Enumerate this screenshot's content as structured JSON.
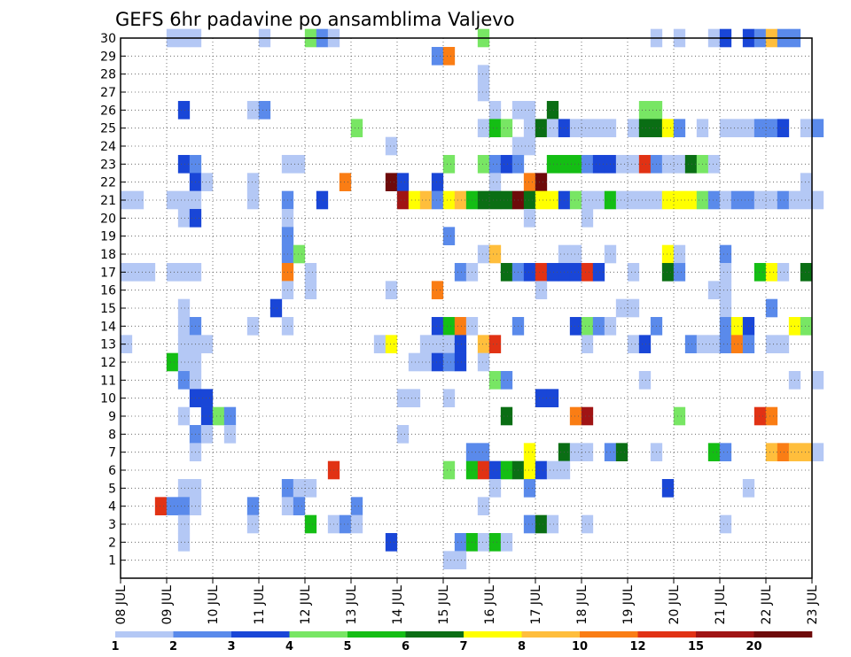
{
  "chart_data": {
    "type": "heatmap",
    "title": "GEFS 6hr padavine po ansamblima Valjevo",
    "xlabel": "",
    "ylabel": "",
    "x_ticks": [
      "08 JUL",
      "09 JUL",
      "10 JUL",
      "11 JUL",
      "12 JUL",
      "13 JUL",
      "14 JUL",
      "15 JUL",
      "16 JUL",
      "17 JUL",
      "18 JUL",
      "19 JUL",
      "20 JUL",
      "21 JUL",
      "22 JUL",
      "23 JUL"
    ],
    "y_ticks": [
      "1",
      "2",
      "3",
      "4",
      "5",
      "6",
      "7",
      "8",
      "9",
      "10",
      "11",
      "12",
      "13",
      "14",
      "15",
      "16",
      "17",
      "18",
      "19",
      "20",
      "21",
      "22",
      "23",
      "24",
      "25",
      "26",
      "27",
      "28",
      "29",
      "30"
    ],
    "xlim": [
      0,
      60
    ],
    "ylim": [
      0,
      30
    ],
    "grid": true,
    "legend": {
      "position": "bottom",
      "boundaries": [
        "1",
        "2",
        "3",
        "4",
        "5",
        "6",
        "7",
        "8",
        "10",
        "12",
        "15",
        "20"
      ],
      "colors": [
        "#b4c8f5",
        "#5a8aeb",
        "#1946d7",
        "#78e664",
        "#14be14",
        "#0a6e14",
        "#ffff00",
        "#ffbe3c",
        "#fa7d14",
        "#e13214",
        "#a01414",
        "#6e0a0a"
      ]
    },
    "cells": [
      [
        4,
        30,
        0
      ],
      [
        5,
        30,
        0
      ],
      [
        6,
        30,
        0
      ],
      [
        12,
        30,
        0
      ],
      [
        16,
        30,
        3
      ],
      [
        17,
        30,
        1
      ],
      [
        18,
        30,
        0
      ],
      [
        31,
        30,
        3
      ],
      [
        46,
        30,
        0
      ],
      [
        48,
        30,
        0
      ],
      [
        51,
        30,
        0
      ],
      [
        52,
        30,
        2
      ],
      [
        54,
        30,
        2
      ],
      [
        55,
        30,
        1
      ],
      [
        56,
        30,
        7
      ],
      [
        57,
        30,
        1
      ],
      [
        58,
        30,
        1
      ],
      [
        27,
        29,
        1
      ],
      [
        28,
        29,
        8
      ],
      [
        31,
        28,
        0
      ],
      [
        31,
        27,
        0
      ],
      [
        34,
        26,
        0
      ],
      [
        35,
        26,
        0
      ],
      [
        5,
        26,
        2
      ],
      [
        11,
        26,
        0
      ],
      [
        12,
        26,
        1
      ],
      [
        32,
        26,
        0
      ],
      [
        37,
        26,
        5
      ],
      [
        45,
        26,
        3
      ],
      [
        46,
        26,
        3
      ],
      [
        20,
        25,
        3
      ],
      [
        31,
        25,
        0
      ],
      [
        32,
        25,
        4
      ],
      [
        33,
        25,
        3
      ],
      [
        35,
        25,
        0
      ],
      [
        36,
        25,
        5
      ],
      [
        37,
        25,
        0
      ],
      [
        38,
        25,
        2
      ],
      [
        39,
        25,
        0
      ],
      [
        40,
        25,
        0
      ],
      [
        41,
        25,
        0
      ],
      [
        42,
        25,
        0
      ],
      [
        44,
        25,
        0
      ],
      [
        45,
        25,
        5
      ],
      [
        46,
        25,
        5
      ],
      [
        47,
        25,
        6
      ],
      [
        48,
        25,
        1
      ],
      [
        50,
        25,
        0
      ],
      [
        52,
        25,
        0
      ],
      [
        53,
        25,
        0
      ],
      [
        54,
        25,
        0
      ],
      [
        55,
        25,
        1
      ],
      [
        56,
        25,
        1
      ],
      [
        57,
        25,
        2
      ],
      [
        59,
        25,
        0
      ],
      [
        60,
        25,
        1
      ],
      [
        23,
        24,
        0
      ],
      [
        34,
        24,
        0
      ],
      [
        35,
        24,
        0
      ],
      [
        5,
        23,
        2
      ],
      [
        6,
        23,
        1
      ],
      [
        14,
        23,
        0
      ],
      [
        15,
        23,
        0
      ],
      [
        28,
        23,
        3
      ],
      [
        31,
        23,
        3
      ],
      [
        32,
        23,
        1
      ],
      [
        33,
        23,
        2
      ],
      [
        34,
        23,
        1
      ],
      [
        37,
        23,
        4
      ],
      [
        38,
        23,
        4
      ],
      [
        39,
        23,
        4
      ],
      [
        40,
        23,
        1
      ],
      [
        41,
        23,
        2
      ],
      [
        42,
        23,
        2
      ],
      [
        43,
        23,
        0
      ],
      [
        44,
        23,
        0
      ],
      [
        45,
        23,
        9
      ],
      [
        46,
        23,
        1
      ],
      [
        47,
        23,
        0
      ],
      [
        48,
        23,
        0
      ],
      [
        49,
        23,
        5
      ],
      [
        50,
        23,
        3
      ],
      [
        51,
        23,
        0
      ],
      [
        6,
        22,
        2
      ],
      [
        7,
        22,
        0
      ],
      [
        11,
        22,
        0
      ],
      [
        19,
        22,
        8
      ],
      [
        23,
        22,
        11
      ],
      [
        24,
        22,
        2
      ],
      [
        27,
        22,
        2
      ],
      [
        32,
        22,
        0
      ],
      [
        35,
        22,
        8
      ],
      [
        36,
        22,
        11
      ],
      [
        59,
        22,
        0
      ],
      [
        0,
        21,
        0
      ],
      [
        1,
        21,
        0
      ],
      [
        4,
        21,
        0
      ],
      [
        5,
        21,
        0
      ],
      [
        6,
        21,
        0
      ],
      [
        11,
        21,
        0
      ],
      [
        14,
        21,
        1
      ],
      [
        17,
        21,
        2
      ],
      [
        24,
        21,
        10
      ],
      [
        25,
        21,
        6
      ],
      [
        26,
        21,
        7
      ],
      [
        27,
        21,
        1
      ],
      [
        28,
        21,
        6
      ],
      [
        29,
        21,
        7
      ],
      [
        30,
        21,
        4
      ],
      [
        31,
        21,
        5
      ],
      [
        32,
        21,
        5
      ],
      [
        33,
        21,
        5
      ],
      [
        34,
        21,
        11
      ],
      [
        35,
        21,
        5
      ],
      [
        36,
        21,
        6
      ],
      [
        37,
        21,
        6
      ],
      [
        38,
        21,
        2
      ],
      [
        39,
        21,
        3
      ],
      [
        40,
        21,
        0
      ],
      [
        41,
        21,
        0
      ],
      [
        42,
        21,
        4
      ],
      [
        43,
        21,
        0
      ],
      [
        44,
        21,
        0
      ],
      [
        45,
        21,
        0
      ],
      [
        46,
        21,
        0
      ],
      [
        47,
        21,
        6
      ],
      [
        48,
        21,
        6
      ],
      [
        49,
        21,
        6
      ],
      [
        50,
        21,
        3
      ],
      [
        51,
        21,
        1
      ],
      [
        52,
        21,
        0
      ],
      [
        53,
        21,
        1
      ],
      [
        54,
        21,
        1
      ],
      [
        55,
        21,
        0
      ],
      [
        56,
        21,
        0
      ],
      [
        57,
        21,
        1
      ],
      [
        58,
        21,
        0
      ],
      [
        59,
        21,
        0
      ],
      [
        60,
        21,
        0
      ],
      [
        5,
        20,
        0
      ],
      [
        6,
        20,
        2
      ],
      [
        14,
        20,
        0
      ],
      [
        35,
        20,
        0
      ],
      [
        40,
        20,
        0
      ],
      [
        14,
        19,
        1
      ],
      [
        28,
        19,
        1
      ],
      [
        14,
        18,
        1
      ],
      [
        15,
        18,
        3
      ],
      [
        31,
        18,
        0
      ],
      [
        32,
        18,
        7
      ],
      [
        38,
        18,
        0
      ],
      [
        39,
        18,
        0
      ],
      [
        42,
        18,
        0
      ],
      [
        47,
        18,
        6
      ],
      [
        48,
        18,
        0
      ],
      [
        52,
        18,
        1
      ],
      [
        0,
        17,
        0
      ],
      [
        1,
        17,
        0
      ],
      [
        2,
        17,
        0
      ],
      [
        4,
        17,
        0
      ],
      [
        5,
        17,
        0
      ],
      [
        6,
        17,
        0
      ],
      [
        14,
        17,
        8
      ],
      [
        16,
        17,
        0
      ],
      [
        29,
        17,
        1
      ],
      [
        30,
        17,
        0
      ],
      [
        33,
        17,
        5
      ],
      [
        34,
        17,
        1
      ],
      [
        35,
        17,
        2
      ],
      [
        36,
        17,
        9
      ],
      [
        37,
        17,
        2
      ],
      [
        38,
        17,
        2
      ],
      [
        39,
        17,
        2
      ],
      [
        40,
        17,
        9
      ],
      [
        41,
        17,
        2
      ],
      [
        44,
        17,
        0
      ],
      [
        47,
        17,
        5
      ],
      [
        48,
        17,
        1
      ],
      [
        52,
        17,
        0
      ],
      [
        55,
        17,
        4
      ],
      [
        56,
        17,
        6
      ],
      [
        57,
        17,
        0
      ],
      [
        59,
        17,
        5
      ],
      [
        14,
        16,
        0
      ],
      [
        16,
        16,
        0
      ],
      [
        23,
        16,
        0
      ],
      [
        27,
        16,
        8
      ],
      [
        36,
        16,
        0
      ],
      [
        51,
        16,
        0
      ],
      [
        52,
        16,
        0
      ],
      [
        5,
        15,
        0
      ],
      [
        13,
        15,
        2
      ],
      [
        43,
        15,
        0
      ],
      [
        44,
        15,
        0
      ],
      [
        52,
        15,
        0
      ],
      [
        56,
        15,
        1
      ],
      [
        5,
        14,
        0
      ],
      [
        6,
        14,
        1
      ],
      [
        11,
        14,
        0
      ],
      [
        14,
        14,
        0
      ],
      [
        27,
        14,
        2
      ],
      [
        28,
        14,
        4
      ],
      [
        29,
        14,
        8
      ],
      [
        30,
        14,
        0
      ],
      [
        34,
        14,
        1
      ],
      [
        39,
        14,
        2
      ],
      [
        40,
        14,
        3
      ],
      [
        41,
        14,
        1
      ],
      [
        42,
        14,
        0
      ],
      [
        46,
        14,
        1
      ],
      [
        52,
        14,
        1
      ],
      [
        53,
        14,
        6
      ],
      [
        54,
        14,
        2
      ],
      [
        58,
        14,
        6
      ],
      [
        59,
        14,
        3
      ],
      [
        0,
        13,
        0
      ],
      [
        5,
        13,
        0
      ],
      [
        6,
        13,
        0
      ],
      [
        7,
        13,
        0
      ],
      [
        22,
        13,
        0
      ],
      [
        23,
        13,
        6
      ],
      [
        26,
        13,
        0
      ],
      [
        27,
        13,
        0
      ],
      [
        28,
        13,
        0
      ],
      [
        29,
        13,
        2
      ],
      [
        31,
        13,
        7
      ],
      [
        32,
        13,
        9
      ],
      [
        40,
        13,
        0
      ],
      [
        44,
        13,
        0
      ],
      [
        45,
        13,
        2
      ],
      [
        49,
        13,
        1
      ],
      [
        50,
        13,
        0
      ],
      [
        51,
        13,
        0
      ],
      [
        52,
        13,
        1
      ],
      [
        53,
        13,
        8
      ],
      [
        54,
        13,
        1
      ],
      [
        56,
        13,
        0
      ],
      [
        57,
        13,
        0
      ],
      [
        4,
        12,
        4
      ],
      [
        5,
        12,
        0
      ],
      [
        6,
        12,
        0
      ],
      [
        25,
        12,
        0
      ],
      [
        26,
        12,
        0
      ],
      [
        27,
        12,
        2
      ],
      [
        28,
        12,
        1
      ],
      [
        29,
        12,
        2
      ],
      [
        31,
        12,
        0
      ],
      [
        5,
        11,
        1
      ],
      [
        6,
        11,
        0
      ],
      [
        32,
        11,
        3
      ],
      [
        33,
        11,
        1
      ],
      [
        45,
        11,
        0
      ],
      [
        58,
        11,
        0
      ],
      [
        60,
        11,
        0
      ],
      [
        6,
        10,
        2
      ],
      [
        7,
        10,
        2
      ],
      [
        24,
        10,
        0
      ],
      [
        25,
        10,
        0
      ],
      [
        28,
        10,
        0
      ],
      [
        36,
        10,
        2
      ],
      [
        37,
        10,
        2
      ],
      [
        5,
        9,
        0
      ],
      [
        7,
        9,
        2
      ],
      [
        8,
        9,
        3
      ],
      [
        9,
        9,
        1
      ],
      [
        33,
        9,
        5
      ],
      [
        39,
        9,
        8
      ],
      [
        40,
        9,
        10
      ],
      [
        48,
        9,
        3
      ],
      [
        55,
        9,
        9
      ],
      [
        56,
        9,
        8
      ],
      [
        6,
        8,
        1
      ],
      [
        7,
        8,
        0
      ],
      [
        9,
        8,
        0
      ],
      [
        24,
        8,
        0
      ],
      [
        6,
        7,
        0
      ],
      [
        30,
        7,
        1
      ],
      [
        31,
        7,
        1
      ],
      [
        35,
        7,
        6
      ],
      [
        38,
        7,
        5
      ],
      [
        39,
        7,
        0
      ],
      [
        40,
        7,
        0
      ],
      [
        42,
        7,
        1
      ],
      [
        43,
        7,
        5
      ],
      [
        46,
        7,
        0
      ],
      [
        51,
        7,
        4
      ],
      [
        52,
        7,
        1
      ],
      [
        56,
        7,
        7
      ],
      [
        57,
        7,
        8
      ],
      [
        58,
        7,
        7
      ],
      [
        59,
        7,
        7
      ],
      [
        60,
        7,
        0
      ],
      [
        18,
        6,
        9
      ],
      [
        28,
        6,
        3
      ],
      [
        30,
        6,
        4
      ],
      [
        31,
        6,
        9
      ],
      [
        32,
        6,
        2
      ],
      [
        33,
        6,
        4
      ],
      [
        34,
        6,
        5
      ],
      [
        35,
        6,
        6
      ],
      [
        36,
        6,
        2
      ],
      [
        37,
        6,
        0
      ],
      [
        38,
        6,
        0
      ],
      [
        5,
        5,
        0
      ],
      [
        6,
        5,
        0
      ],
      [
        14,
        5,
        1
      ],
      [
        15,
        5,
        0
      ],
      [
        16,
        5,
        0
      ],
      [
        32,
        5,
        0
      ],
      [
        35,
        5,
        1
      ],
      [
        47,
        5,
        2
      ],
      [
        54,
        5,
        0
      ],
      [
        3,
        4,
        9
      ],
      [
        4,
        4,
        1
      ],
      [
        5,
        4,
        1
      ],
      [
        6,
        4,
        0
      ],
      [
        11,
        4,
        1
      ],
      [
        14,
        4,
        0
      ],
      [
        15,
        4,
        1
      ],
      [
        20,
        4,
        1
      ],
      [
        31,
        4,
        0
      ],
      [
        5,
        3,
        0
      ],
      [
        11,
        3,
        0
      ],
      [
        16,
        3,
        4
      ],
      [
        18,
        3,
        0
      ],
      [
        19,
        3,
        1
      ],
      [
        20,
        3,
        0
      ],
      [
        35,
        3,
        1
      ],
      [
        36,
        3,
        5
      ],
      [
        37,
        3,
        0
      ],
      [
        40,
        3,
        0
      ],
      [
        52,
        3,
        0
      ],
      [
        5,
        2,
        0
      ],
      [
        23,
        2,
        2
      ],
      [
        29,
        2,
        1
      ],
      [
        30,
        2,
        4
      ],
      [
        31,
        2,
        0
      ],
      [
        32,
        2,
        4
      ],
      [
        33,
        2,
        0
      ],
      [
        28,
        1,
        0
      ],
      [
        29,
        1,
        0
      ]
    ]
  }
}
